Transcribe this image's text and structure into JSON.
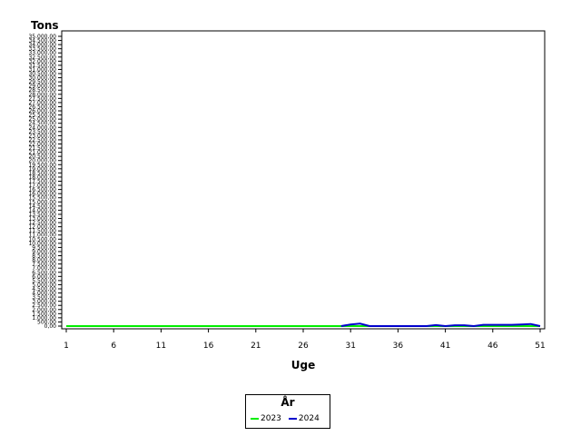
{
  "chart_data": {
    "type": "line",
    "title": "",
    "ylabel": "Tons",
    "xlabel": "Uge",
    "x_ticks": [
      1,
      6,
      11,
      16,
      21,
      26,
      31,
      36,
      41,
      46,
      51
    ],
    "xlim": [
      1,
      51
    ],
    "ylim": [
      0,
      35000
    ],
    "y_ticks": [
      0,
      500,
      1000,
      1500,
      2000,
      2500,
      3000,
      3500,
      4000,
      4500,
      5000,
      5500,
      6000,
      6500,
      7000,
      7500,
      8000,
      8500,
      9000,
      9500,
      10000,
      10500,
      11000,
      11500,
      12000,
      12500,
      13000,
      13500,
      14000,
      14500,
      15000,
      15500,
      16000,
      16500,
      17000,
      17500,
      18000,
      18500,
      19000,
      19500,
      20000,
      20500,
      21000,
      21500,
      22000,
      22500,
      23000,
      23500,
      24000,
      24500,
      25000,
      25500,
      26000,
      26500,
      27000,
      27500,
      28000,
      28500,
      29000,
      29500,
      30000,
      30500,
      31000,
      31500,
      32000,
      32500,
      33000,
      33500,
      34000,
      34500,
      35000
    ],
    "y_tick_labels": [
      "0,00",
      "500,00",
      "1.000,00",
      "1.500,00",
      "2.000,00",
      "2.500,00",
      "3.000,00",
      "3.500,00",
      "4.000,00",
      "4.500,00",
      "5.000,00",
      "5.500,00",
      "6.000,00",
      "6.500,00",
      "7.000,00",
      "7.500,00",
      "8.000,00",
      "8.500,00",
      "9.000,00",
      "9.500,00",
      "10.000,00",
      "10.500,00",
      "11.000,00",
      "11.500,00",
      "12.000,00",
      "12.500,00",
      "13.000,00",
      "13.500,00",
      "14.000,00",
      "14.500,00",
      "15.000,00",
      "15.500,00",
      "16.000,00",
      "16.500,00",
      "17.000,00",
      "17.500,00",
      "18.000,00",
      "18.500,00",
      "19.000,00",
      "19.500,00",
      "20.000,00",
      "20.500,00",
      "21.000,00",
      "21.500,00",
      "22.000,00",
      "22.500,00",
      "23.000,00",
      "23.500,00",
      "24.000,00",
      "24.500,00",
      "25.000,00",
      "25.500,00",
      "26.000,00",
      "26.500,00",
      "27.000,00",
      "27.500,00",
      "28.000,00",
      "28.500,00",
      "29.000,00",
      "29.500,00",
      "30.000,00",
      "30.500,00",
      "31.000,00",
      "31.500,00",
      "32.000,00",
      "32.500,00",
      "33.000,00",
      "33.500,00",
      "34.000,00",
      "34.500,00",
      "35.000,00"
    ],
    "grid": false,
    "legend_position": "bottom-center",
    "legend_title": "År",
    "series": [
      {
        "name": "2023",
        "color": "#00ee00",
        "x": [
          1,
          2,
          3,
          4,
          5,
          6,
          7,
          8,
          9,
          10,
          11,
          12,
          13,
          14,
          15,
          16,
          17,
          18,
          19,
          20,
          21,
          22,
          23,
          24,
          25,
          26,
          27,
          28,
          29,
          30,
          31,
          32,
          33,
          34,
          35,
          36,
          37,
          38,
          39,
          40,
          41,
          42,
          43,
          44,
          45,
          46,
          47,
          48,
          49,
          50,
          51
        ],
        "values": [
          0,
          0,
          0,
          0,
          0,
          0,
          0,
          0,
          0,
          0,
          0,
          0,
          0,
          0,
          0,
          0,
          0,
          0,
          0,
          0,
          0,
          0,
          0,
          0,
          0,
          0,
          0,
          0,
          0,
          0,
          0,
          0,
          0,
          0,
          0,
          0,
          0,
          0,
          0,
          0,
          0,
          0,
          0,
          0,
          0,
          0,
          0,
          0,
          0,
          0,
          0
        ]
      },
      {
        "name": "2024",
        "color": "#0000cc",
        "x": [
          30,
          31,
          32,
          33,
          34,
          35,
          36,
          37,
          38,
          39,
          40,
          41,
          42,
          43,
          44,
          45,
          46,
          47,
          48,
          49,
          50,
          51
        ],
        "values": [
          0,
          200,
          300,
          0,
          0,
          0,
          0,
          0,
          0,
          0,
          120,
          0,
          100,
          100,
          0,
          150,
          150,
          150,
          150,
          200,
          250,
          0
        ]
      }
    ]
  }
}
